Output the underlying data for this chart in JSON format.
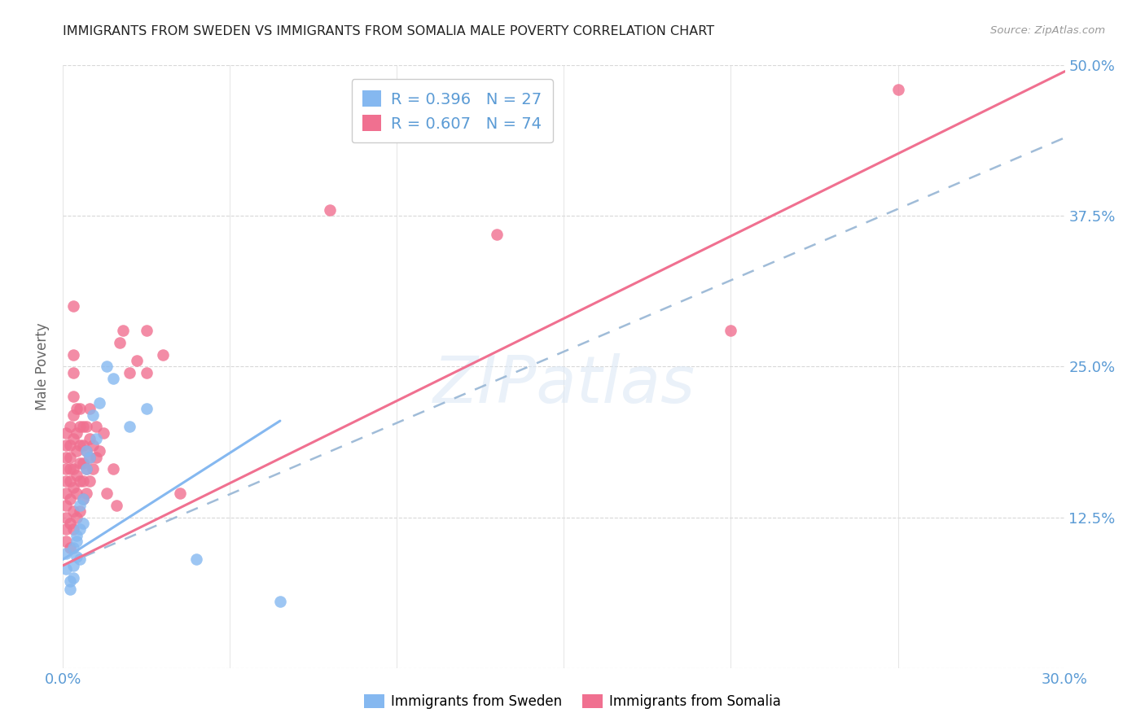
{
  "title": "IMMIGRANTS FROM SWEDEN VS IMMIGRANTS FROM SOMALIA MALE POVERTY CORRELATION CHART",
  "source": "Source: ZipAtlas.com",
  "ylabel": "Male Poverty",
  "xlim": [
    0.0,
    0.3
  ],
  "ylim": [
    0.0,
    0.5
  ],
  "xticks": [
    0.0,
    0.05,
    0.1,
    0.15,
    0.2,
    0.25,
    0.3
  ],
  "xtick_labels": [
    "0.0%",
    "",
    "",
    "",
    "",
    "",
    "30.0%"
  ],
  "yticks": [
    0.0,
    0.125,
    0.25,
    0.375,
    0.5
  ],
  "ytick_labels_right": [
    "",
    "12.5%",
    "25.0%",
    "37.5%",
    "50.0%"
  ],
  "sweden_color": "#85b8f0",
  "somalia_color": "#f07090",
  "sweden_R": 0.396,
  "sweden_N": 27,
  "somalia_R": 0.607,
  "somalia_N": 74,
  "legend_label_sweden": "Immigrants from Sweden",
  "legend_label_somalia": "Immigrants from Somalia",
  "watermark": "ZIPatlas",
  "sweden_line_x": [
    0.0,
    0.065
  ],
  "sweden_line_y": [
    0.09,
    0.205
  ],
  "somalia_line_x": [
    0.0,
    0.3
  ],
  "somalia_line_y": [
    0.085,
    0.495
  ],
  "dashed_line_x": [
    0.0,
    0.3
  ],
  "dashed_line_y": [
    0.085,
    0.44
  ],
  "sweden_scatter": [
    [
      0.001,
      0.095
    ],
    [
      0.001,
      0.082
    ],
    [
      0.002,
      0.072
    ],
    [
      0.002,
      0.065
    ],
    [
      0.003,
      0.1
    ],
    [
      0.003,
      0.085
    ],
    [
      0.003,
      0.075
    ],
    [
      0.004,
      0.11
    ],
    [
      0.004,
      0.105
    ],
    [
      0.004,
      0.092
    ],
    [
      0.005,
      0.09
    ],
    [
      0.005,
      0.115
    ],
    [
      0.005,
      0.135
    ],
    [
      0.006,
      0.12
    ],
    [
      0.006,
      0.14
    ],
    [
      0.007,
      0.18
    ],
    [
      0.007,
      0.165
    ],
    [
      0.008,
      0.175
    ],
    [
      0.009,
      0.21
    ],
    [
      0.01,
      0.19
    ],
    [
      0.011,
      0.22
    ],
    [
      0.013,
      0.25
    ],
    [
      0.015,
      0.24
    ],
    [
      0.02,
      0.2
    ],
    [
      0.025,
      0.215
    ],
    [
      0.04,
      0.09
    ],
    [
      0.065,
      0.055
    ]
  ],
  "somalia_scatter": [
    [
      0.001,
      0.105
    ],
    [
      0.001,
      0.115
    ],
    [
      0.001,
      0.125
    ],
    [
      0.001,
      0.135
    ],
    [
      0.001,
      0.145
    ],
    [
      0.001,
      0.155
    ],
    [
      0.001,
      0.165
    ],
    [
      0.001,
      0.175
    ],
    [
      0.001,
      0.185
    ],
    [
      0.001,
      0.195
    ],
    [
      0.002,
      0.1
    ],
    [
      0.002,
      0.12
    ],
    [
      0.002,
      0.14
    ],
    [
      0.002,
      0.155
    ],
    [
      0.002,
      0.165
    ],
    [
      0.002,
      0.175
    ],
    [
      0.002,
      0.185
    ],
    [
      0.002,
      0.2
    ],
    [
      0.003,
      0.115
    ],
    [
      0.003,
      0.13
    ],
    [
      0.003,
      0.15
    ],
    [
      0.003,
      0.165
    ],
    [
      0.003,
      0.19
    ],
    [
      0.003,
      0.21
    ],
    [
      0.003,
      0.225
    ],
    [
      0.003,
      0.245
    ],
    [
      0.003,
      0.26
    ],
    [
      0.003,
      0.3
    ],
    [
      0.004,
      0.125
    ],
    [
      0.004,
      0.145
    ],
    [
      0.004,
      0.16
    ],
    [
      0.004,
      0.18
    ],
    [
      0.004,
      0.195
    ],
    [
      0.004,
      0.215
    ],
    [
      0.005,
      0.13
    ],
    [
      0.005,
      0.155
    ],
    [
      0.005,
      0.17
    ],
    [
      0.005,
      0.185
    ],
    [
      0.005,
      0.2
    ],
    [
      0.005,
      0.215
    ],
    [
      0.006,
      0.14
    ],
    [
      0.006,
      0.155
    ],
    [
      0.006,
      0.17
    ],
    [
      0.006,
      0.185
    ],
    [
      0.006,
      0.2
    ],
    [
      0.007,
      0.145
    ],
    [
      0.007,
      0.165
    ],
    [
      0.007,
      0.18
    ],
    [
      0.007,
      0.2
    ],
    [
      0.008,
      0.155
    ],
    [
      0.008,
      0.175
    ],
    [
      0.008,
      0.19
    ],
    [
      0.008,
      0.215
    ],
    [
      0.009,
      0.165
    ],
    [
      0.009,
      0.185
    ],
    [
      0.01,
      0.175
    ],
    [
      0.01,
      0.2
    ],
    [
      0.011,
      0.18
    ],
    [
      0.012,
      0.195
    ],
    [
      0.013,
      0.145
    ],
    [
      0.015,
      0.165
    ],
    [
      0.016,
      0.135
    ],
    [
      0.017,
      0.27
    ],
    [
      0.018,
      0.28
    ],
    [
      0.02,
      0.245
    ],
    [
      0.022,
      0.255
    ],
    [
      0.025,
      0.245
    ],
    [
      0.025,
      0.28
    ],
    [
      0.03,
      0.26
    ],
    [
      0.035,
      0.145
    ],
    [
      0.08,
      0.38
    ],
    [
      0.13,
      0.36
    ],
    [
      0.2,
      0.28
    ],
    [
      0.25,
      0.48
    ]
  ]
}
